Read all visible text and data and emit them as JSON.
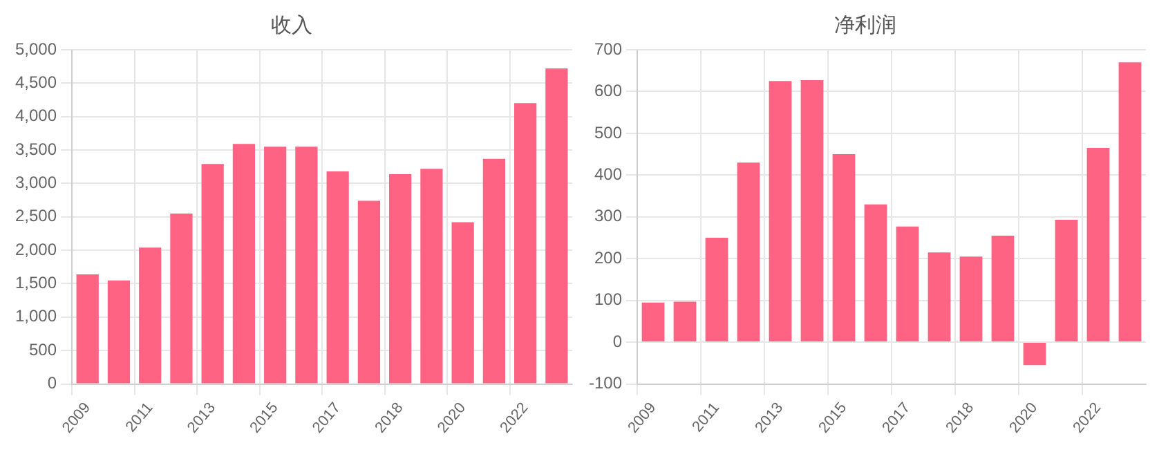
{
  "chart_data": [
    {
      "type": "bar",
      "title": "收入",
      "categories": [
        "2009",
        null,
        "2011",
        null,
        "2013",
        null,
        "2015",
        null,
        "2017",
        null,
        "2018",
        null,
        "2020",
        null,
        "2022",
        null
      ],
      "values": [
        1640,
        1550,
        2040,
        2550,
        3290,
        3590,
        3550,
        3550,
        3180,
        2740,
        3140,
        3220,
        2420,
        3370,
        4200,
        4720
      ],
      "color": "#ff6384",
      "ylim": [
        0,
        5000
      ],
      "yticks": [
        0,
        500,
        {
          "value": 1000,
          "label": "1,000"
        },
        {
          "value": 1500,
          "label": "1,500"
        },
        {
          "value": 2000,
          "label": "2,000"
        },
        {
          "value": 2500,
          "label": "2,500"
        },
        {
          "value": 3000,
          "label": "3,000"
        },
        {
          "value": 3500,
          "label": "3,500"
        },
        {
          "value": 4000,
          "label": "4,000"
        },
        {
          "value": 4500,
          "label": "4,500"
        },
        {
          "value": 5000,
          "label": "5,000"
        }
      ],
      "grid": true,
      "legend": false
    },
    {
      "type": "bar",
      "title": "净利润",
      "categories": [
        "2009",
        null,
        "2011",
        null,
        "2013",
        null,
        "2015",
        null,
        "2017",
        null,
        "2018",
        null,
        "2020",
        null,
        "2022",
        null
      ],
      "values": [
        95,
        97,
        250,
        430,
        625,
        627,
        450,
        330,
        277,
        215,
        205,
        255,
        -55,
        293,
        465,
        670
      ],
      "color": "#ff6384",
      "ylim": [
        -100,
        700
      ],
      "yticks": [
        -100,
        0,
        100,
        200,
        300,
        400,
        500,
        600,
        700
      ],
      "grid": true,
      "legend": false
    }
  ]
}
